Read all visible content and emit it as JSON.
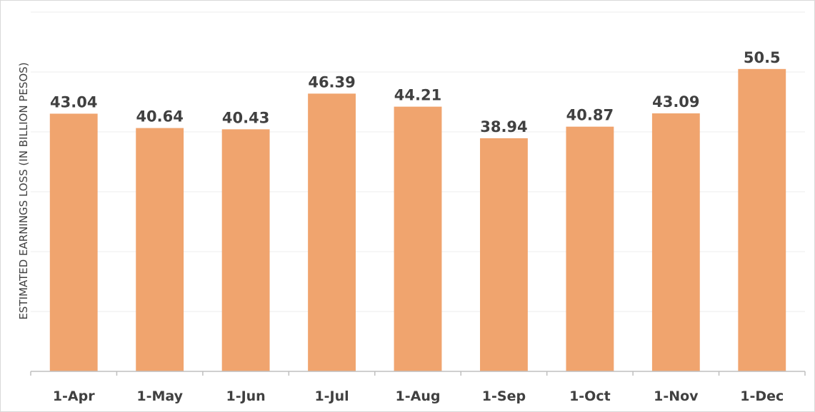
{
  "chart_data": {
    "type": "bar",
    "title": "",
    "xlabel": "",
    "ylabel": "ESTIMATED EARNINGS LOSS (IN BILLION PESOS)",
    "categories": [
      "1-Apr",
      "1-May",
      "1-Jun",
      "1-Jul",
      "1-Aug",
      "1-Sep",
      "1-Oct",
      "1-Nov",
      "1-Dec"
    ],
    "values": [
      43.04,
      40.64,
      40.43,
      46.39,
      44.21,
      38.94,
      40.87,
      43.09,
      50.5
    ],
    "data_labels": [
      "43.04",
      "40.64",
      "40.43",
      "46.39",
      "44.21",
      "38.94",
      "40.87",
      "43.09",
      "50.5"
    ],
    "ylim": [
      0,
      60
    ],
    "gridlines": [
      10,
      20,
      30,
      40,
      50,
      60
    ],
    "grid": true,
    "legend": "none",
    "colors": {
      "bar": "#f0a46e",
      "text": "#404040",
      "grid": "#ececec",
      "axis": "#bfbfbf"
    }
  }
}
